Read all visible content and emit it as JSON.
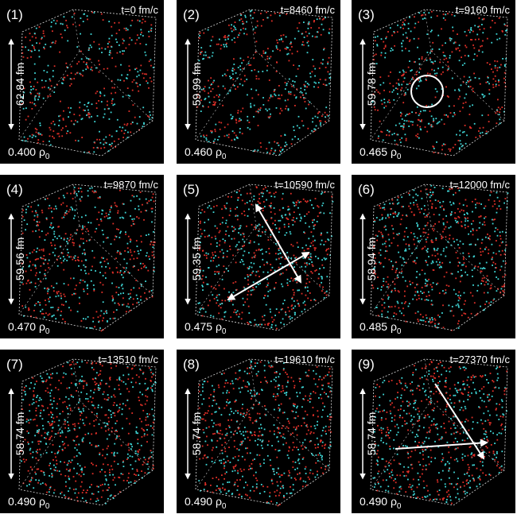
{
  "rho": "ρ",
  "rho_sub": "0",
  "panels": [
    {
      "label": "(1)",
      "time": "t=0 fm/c",
      "length": "62.84 fm",
      "density": "0.400"
    },
    {
      "label": "(2)",
      "time": "t=8460 fm/c",
      "length": "59.99 fm",
      "density": "0.460"
    },
    {
      "label": "(3)",
      "time": "t=9160 fm/c",
      "length": "59.78 fm",
      "density": "0.465"
    },
    {
      "label": "(4)",
      "time": "t=9870 fm/c",
      "length": "59.56 fm",
      "density": "0.470"
    },
    {
      "label": "(5)",
      "time": "t=10590 fm/c",
      "length": "59.35 fm",
      "density": "0.475"
    },
    {
      "label": "(6)",
      "time": "t=12000 fm/c",
      "length": "58.94 fm",
      "density": "0.485"
    },
    {
      "label": "(7)",
      "time": "t=13510 fm/c",
      "length": "58.74 fm",
      "density": "0.490"
    },
    {
      "label": "(8)",
      "time": "t=19610 fm/c",
      "length": "58.74 fm",
      "density": "0.490"
    },
    {
      "label": "(9)",
      "time": "t=27370 fm/c",
      "length": "58.74 fm",
      "density": "0.490"
    }
  ]
}
